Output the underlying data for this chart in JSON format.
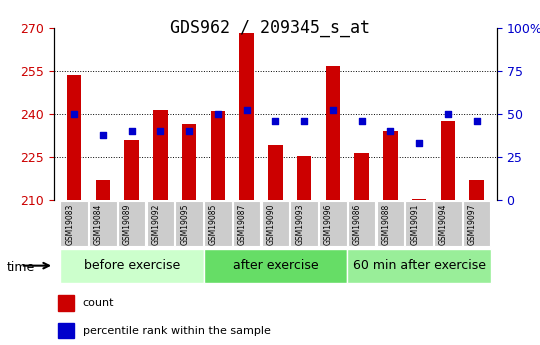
{
  "title": "GDS962 / 209345_s_at",
  "samples": [
    "GSM19083",
    "GSM19084",
    "GSM19089",
    "GSM19092",
    "GSM19095",
    "GSM19085",
    "GSM19087",
    "GSM19090",
    "GSM19093",
    "GSM19096",
    "GSM19086",
    "GSM19088",
    "GSM19091",
    "GSM19094",
    "GSM19097"
  ],
  "groups": [
    {
      "label": "before exercise",
      "color": "#ccffcc",
      "indices": [
        0,
        1,
        2,
        3,
        4
      ]
    },
    {
      "label": "after exercise",
      "color": "#66dd66",
      "indices": [
        5,
        6,
        7,
        8,
        9
      ]
    },
    {
      "label": "60 min after exercise",
      "color": "#99ee99",
      "indices": [
        10,
        11,
        12,
        13,
        14
      ]
    }
  ],
  "bar_values": [
    253.5,
    217.0,
    231.0,
    241.5,
    236.5,
    241.0,
    268.0,
    229.0,
    225.5,
    256.5,
    226.5,
    234.0,
    210.5,
    237.5,
    217.0
  ],
  "pct_values": [
    50.0,
    38.0,
    40.0,
    40.0,
    40.0,
    50.0,
    52.0,
    46.0,
    46.0,
    52.0,
    46.0,
    40.0,
    33.0,
    50.0,
    46.0
  ],
  "ymin": 210,
  "ymax": 270,
  "yticks_left": [
    210,
    225,
    240,
    255,
    270
  ],
  "yticks_right": [
    0,
    25,
    50,
    75,
    100
  ],
  "ylabel_left_color": "#cc0000",
  "ylabel_right_color": "#0000cc",
  "bar_color": "#cc0000",
  "dot_color": "#0000cc",
  "grid_color": "#000000",
  "tick_label_bgcolor": "#cccccc",
  "group_label_fontsize": 9,
  "title_fontsize": 12,
  "time_label": "time",
  "legend_count_label": "count",
  "legend_pct_label": "percentile rank within the sample"
}
